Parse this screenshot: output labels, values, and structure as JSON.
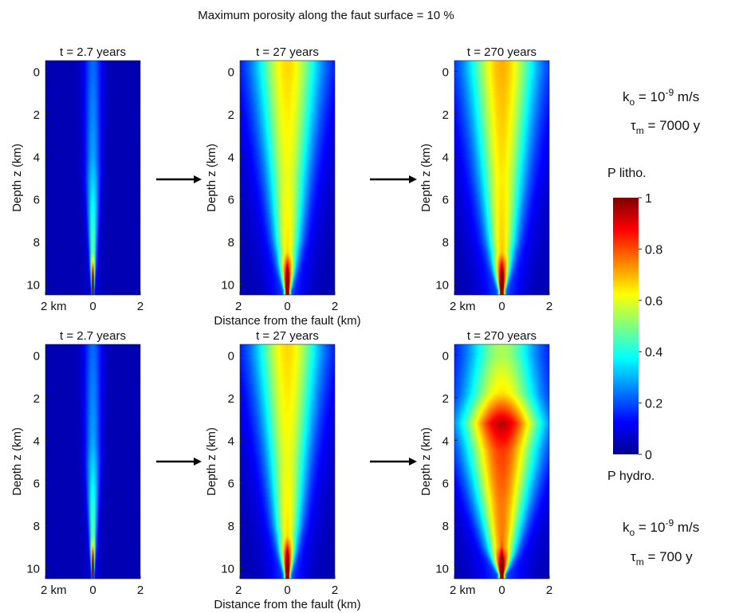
{
  "figure": {
    "title": "Maximum porosity along the faut surface = 10 %"
  },
  "colorbar": {
    "title": "P litho.",
    "bottom_label": "P hydro.",
    "ticks": [
      "1",
      "0.8",
      "0.6",
      "0.4",
      "0.2",
      "0"
    ],
    "min": 0,
    "max": 1,
    "colormap": "jet"
  },
  "rows": [
    {
      "k_label": "k",
      "k_sub": "o",
      "k_eq": " = 10",
      "k_exp": "-9",
      "k_unit": " m/s",
      "tau_label": "τ",
      "tau_sub": "m",
      "tau_value": " = 7000 y"
    },
    {
      "k_label": "k",
      "k_sub": "o",
      "k_eq": " = 10",
      "k_exp": "-9",
      "k_unit": " m/s",
      "tau_label": "τ",
      "tau_sub": "m",
      "tau_value": " = 700 y"
    }
  ],
  "chart_data": [
    {
      "type": "heatmap",
      "row": 1,
      "col": 1,
      "title": "t = 2.7 years",
      "ylabel": "Depth z (km)",
      "xlabel": "",
      "xtick_labels": [
        "2 km",
        "0",
        "2"
      ],
      "ytick_labels": [
        "0",
        "2",
        "4",
        "6",
        "8",
        "10"
      ],
      "xlim": [
        -2,
        2
      ],
      "ylim": [
        10.5,
        -0.5
      ],
      "colormap": "jet",
      "clim": [
        0,
        1
      ],
      "profile": {
        "core_width_km": [
          [
            0,
            0.28
          ],
          [
            5,
            0.22
          ],
          [
            9,
            0.08
          ],
          [
            10.3,
            0.03
          ]
        ],
        "peak_value": [
          [
            0,
            0.15
          ],
          [
            4,
            0.2
          ],
          [
            6,
            0.28
          ],
          [
            8.5,
            0.4
          ],
          [
            10.3,
            0.95
          ]
        ],
        "halo_width_km": [
          [
            0,
            0.25
          ],
          [
            10.3,
            0.2
          ]
        ],
        "halo_value": [
          [
            0,
            0.04
          ],
          [
            10.3,
            0.06
          ]
        ]
      }
    },
    {
      "type": "heatmap",
      "row": 1,
      "col": 2,
      "title": "t = 27 years",
      "ylabel": "Depth z (km)",
      "xlabel": "Distance from the fault (km)",
      "xtick_labels": [
        "2",
        "0",
        "2"
      ],
      "ytick_labels": [
        "0",
        "2",
        "4",
        "6",
        "8",
        "10"
      ],
      "xlim": [
        -2,
        2
      ],
      "ylim": [
        10.5,
        -0.5
      ],
      "colormap": "jet",
      "clim": [
        0,
        1
      ],
      "profile": {
        "core_width_km": [
          [
            0,
            0.85
          ],
          [
            5,
            0.55
          ],
          [
            8,
            0.35
          ],
          [
            10.3,
            0.08
          ]
        ],
        "peak_value": [
          [
            0,
            0.4
          ],
          [
            5,
            0.38
          ],
          [
            8.5,
            0.45
          ],
          [
            10.3,
            0.95
          ]
        ],
        "halo_width_km": [
          [
            0,
            1.45
          ],
          [
            5,
            1.0
          ],
          [
            10.3,
            0.55
          ]
        ],
        "halo_value": [
          [
            0,
            0.22
          ],
          [
            10.3,
            0.15
          ]
        ]
      }
    },
    {
      "type": "heatmap",
      "row": 1,
      "col": 3,
      "title": "t = 270 years",
      "ylabel": "Depth z (km)",
      "xlabel": "",
      "xtick_labels": [
        "2 km",
        "0",
        "2"
      ],
      "ytick_labels": [
        "0",
        "2",
        "4",
        "6",
        "8",
        "10"
      ],
      "xlim": [
        -2,
        2
      ],
      "ylim": [
        10.5,
        -0.5
      ],
      "colormap": "jet",
      "clim": [
        0,
        1
      ],
      "profile": {
        "core_width_km": [
          [
            0,
            0.9
          ],
          [
            5,
            0.6
          ],
          [
            8,
            0.38
          ],
          [
            10.3,
            0.08
          ]
        ],
        "peak_value": [
          [
            0,
            0.42
          ],
          [
            5,
            0.4
          ],
          [
            8.5,
            0.46
          ],
          [
            10.3,
            0.95
          ]
        ],
        "halo_width_km": [
          [
            0,
            1.55
          ],
          [
            5,
            1.1
          ],
          [
            10.3,
            0.6
          ]
        ],
        "halo_value": [
          [
            0,
            0.24
          ],
          [
            10.3,
            0.16
          ]
        ]
      }
    },
    {
      "type": "heatmap",
      "row": 2,
      "col": 1,
      "title": "t = 2.7 years",
      "ylabel": "Depth z (km)",
      "xlabel": "",
      "xtick_labels": [
        "2 km",
        "0",
        "2"
      ],
      "ytick_labels": [
        "0",
        "2",
        "4",
        "6",
        "8",
        "10"
      ],
      "xlim": [
        -2,
        2
      ],
      "ylim": [
        10.5,
        -0.5
      ],
      "colormap": "jet",
      "clim": [
        0,
        1
      ],
      "profile": {
        "core_width_km": [
          [
            0,
            0.28
          ],
          [
            5,
            0.22
          ],
          [
            9,
            0.08
          ],
          [
            10.3,
            0.03
          ]
        ],
        "peak_value": [
          [
            0,
            0.15
          ],
          [
            4,
            0.2
          ],
          [
            6,
            0.28
          ],
          [
            8.5,
            0.4
          ],
          [
            10.3,
            0.95
          ]
        ],
        "halo_width_km": [
          [
            0,
            0.25
          ],
          [
            10.3,
            0.2
          ]
        ],
        "halo_value": [
          [
            0,
            0.04
          ],
          [
            10.3,
            0.06
          ]
        ]
      }
    },
    {
      "type": "heatmap",
      "row": 2,
      "col": 2,
      "title": "t = 27 years",
      "ylabel": "Depth z (km)",
      "xlabel": "Distance from the fault (km)",
      "xtick_labels": [
        "2",
        "0",
        "2"
      ],
      "ytick_labels": [
        "0",
        "2",
        "4",
        "6",
        "8",
        "10"
      ],
      "xlim": [
        -2,
        2
      ],
      "ylim": [
        10.5,
        -0.5
      ],
      "colormap": "jet",
      "clim": [
        0,
        1
      ],
      "profile": {
        "core_width_km": [
          [
            0,
            0.85
          ],
          [
            5,
            0.55
          ],
          [
            8,
            0.35
          ],
          [
            10.3,
            0.08
          ]
        ],
        "peak_value": [
          [
            0,
            0.4
          ],
          [
            5,
            0.38
          ],
          [
            8.5,
            0.45
          ],
          [
            10.3,
            0.95
          ]
        ],
        "halo_width_km": [
          [
            0,
            1.45
          ],
          [
            5,
            1.0
          ],
          [
            10.3,
            0.55
          ]
        ],
        "halo_value": [
          [
            0,
            0.22
          ],
          [
            10.3,
            0.15
          ]
        ]
      }
    },
    {
      "type": "heatmap",
      "row": 2,
      "col": 3,
      "title": "t = 270 years",
      "ylabel": "Depth z (km)",
      "xlabel": "",
      "xtick_labels": [
        "2 km",
        "0",
        "2"
      ],
      "ytick_labels": [
        "0",
        "2",
        "4",
        "6",
        "8",
        "10"
      ],
      "xlim": [
        -2,
        2
      ],
      "ylim": [
        10.5,
        -0.5
      ],
      "colormap": "jet",
      "clim": [
        0,
        1
      ],
      "profile": {
        "core_width_km": [
          [
            0,
            0.9
          ],
          [
            2,
            1.0
          ],
          [
            3.2,
            1.1
          ],
          [
            5,
            0.95
          ],
          [
            7,
            0.7
          ],
          [
            9,
            0.4
          ],
          [
            10.3,
            0.08
          ]
        ],
        "peak_value": [
          [
            0,
            0.3
          ],
          [
            1.8,
            0.42
          ],
          [
            3.2,
            0.72
          ],
          [
            4.5,
            0.6
          ],
          [
            7,
            0.55
          ],
          [
            9,
            0.55
          ],
          [
            10.3,
            0.95
          ]
        ],
        "halo_width_km": [
          [
            0,
            1.6
          ],
          [
            3,
            1.7
          ],
          [
            6,
            1.3
          ],
          [
            10.3,
            0.7
          ]
        ],
        "halo_value": [
          [
            0,
            0.2
          ],
          [
            10.3,
            0.15
          ]
        ]
      }
    }
  ]
}
